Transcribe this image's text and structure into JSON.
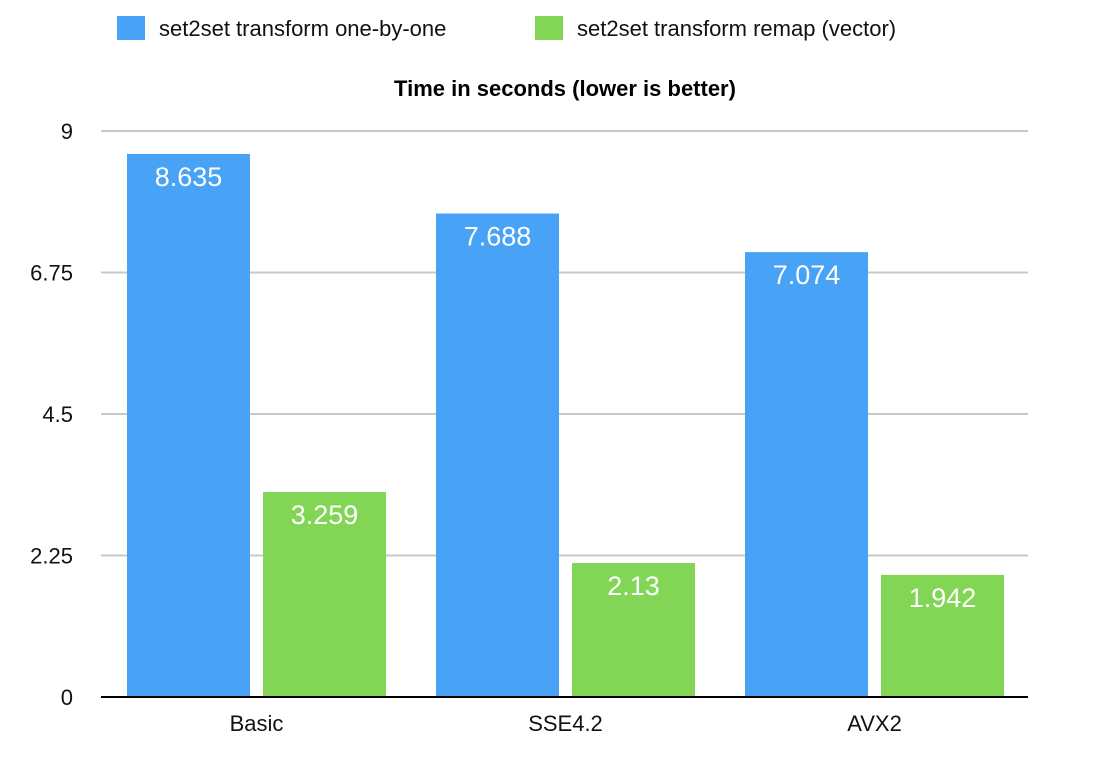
{
  "colors": {
    "series_1": "#48a3f7",
    "series_2": "#82d555"
  },
  "chart_data": {
    "type": "bar",
    "title": "Time in seconds (lower is better)",
    "xlabel": "",
    "ylabel": "",
    "categories": [
      "Basic",
      "SSE4.2",
      "AVX2"
    ],
    "series": [
      {
        "name": "set2set transform one-by-one",
        "values": [
          8.635,
          7.688,
          7.074
        ],
        "labels": [
          "8.635",
          "7.688",
          "7.074"
        ]
      },
      {
        "name": "set2set transform remap (vector)",
        "values": [
          3.259,
          2.13,
          1.942
        ],
        "labels": [
          "3.259",
          "2.13",
          "1.942"
        ]
      }
    ],
    "ylim": [
      0,
      9
    ],
    "yticks": [
      0,
      2.25,
      4.5,
      6.75,
      9
    ],
    "ytick_labels": [
      "0",
      "2.25",
      "4.5",
      "6.75",
      "9"
    ],
    "grid": true,
    "legend_position": "top"
  }
}
